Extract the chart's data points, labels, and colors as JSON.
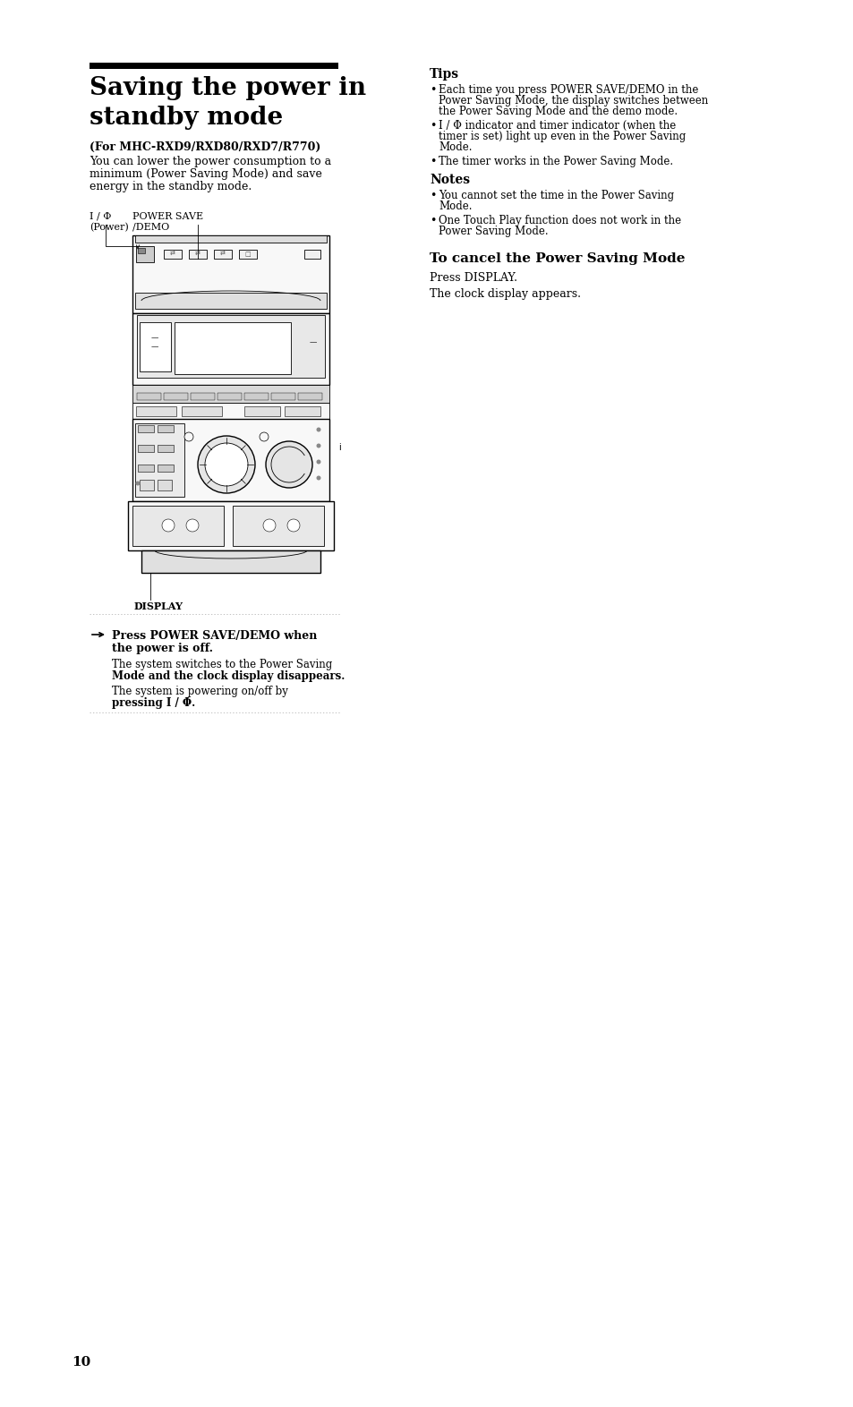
{
  "bg_color": "#ffffff",
  "page_number": "10",
  "title_bar_color": "#000000",
  "title_line1": "Saving the power in",
  "title_line2": "standby mode",
  "subtitle": "(For MHC-RXD9/RXD80/RXD7/R770)",
  "body_lines": [
    "You can lower the power consumption to a",
    "minimum (Power Saving Mode) and save",
    "energy in the standby mode."
  ],
  "label_power_line1": "I / Φ    POWER SAVE",
  "label_power_line2": "(Power)    /DEMO",
  "label_display": "DISPLAY",
  "arrow_line1": "Press POWER SAVE/DEMO when",
  "arrow_line2": "the power is off.",
  "body1_line1": "The system switches to the Power Saving",
  "body1_line2": "Mode and the clock display disappears.",
  "body2_line1": "The system is powering on/off by",
  "body2_line2": "pressing I / Φ.",
  "tips_title": "Tips",
  "tip1_lines": [
    "Each time you press POWER SAVE/DEMO in the",
    "Power Saving Mode, the display switches between",
    "the Power Saving Mode and the demo mode."
  ],
  "tip2_lines": [
    "I / Φ indicator and timer indicator (when the",
    "timer is set) light up even in the Power Saving",
    "Mode."
  ],
  "tip3": "The timer works in the Power Saving Mode.",
  "notes_title": "Notes",
  "note1_lines": [
    "You cannot set the time in the Power Saving",
    "Mode."
  ],
  "note2_lines": [
    "One Touch Play function does not work in the",
    "Power Saving Mode."
  ],
  "cancel_title": "To cancel the Power Saving Mode",
  "cancel_body1": "Press DISPLAY.",
  "cancel_body2": "The clock display appears."
}
